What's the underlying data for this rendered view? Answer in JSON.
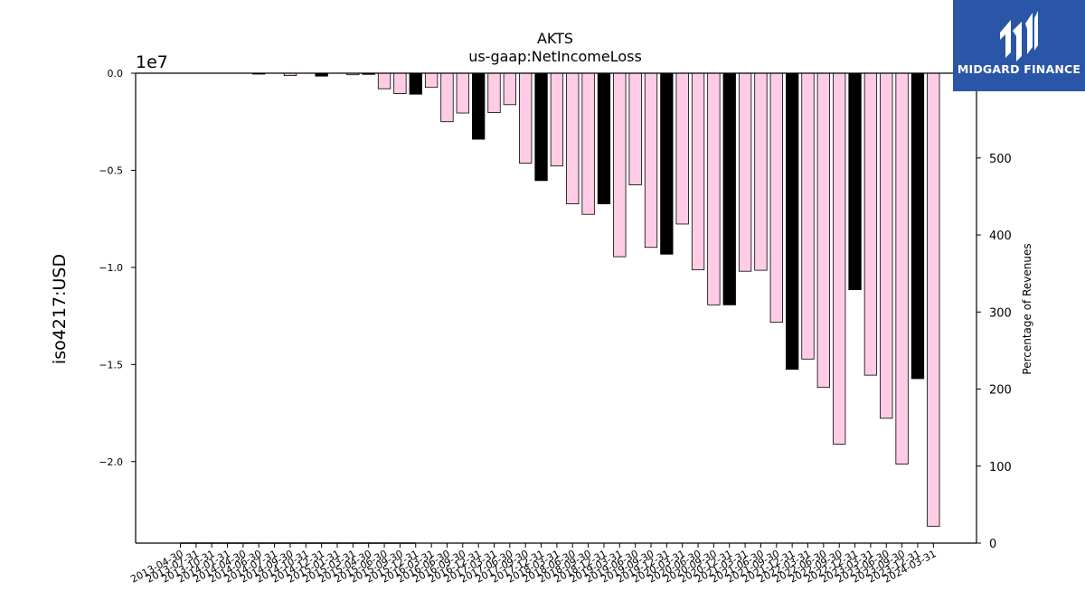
{
  "chart_data": {
    "type": "bar",
    "title": "AKTS",
    "subtitle": "us-gaap:NetIncomeLoss",
    "ylabel": "iso4217:USD",
    "y_offset_label": "1e7",
    "y2label": "Percentage of Revenues",
    "ylim": [
      -2.42,
      0.0
    ],
    "y_ticks": [
      0.0,
      -0.5,
      -1.0,
      -1.5,
      -2.0
    ],
    "y_tick_labels": [
      "0.0",
      "−0.5",
      "−1.0",
      "−1.5",
      "−2.0"
    ],
    "y2lim": [
      0,
      610
    ],
    "y2_ticks": [
      0,
      100,
      200,
      300,
      400,
      500
    ],
    "categories": [
      "2013-04-30",
      "2013-07-31",
      "2013-10-31",
      "2014-01-31",
      "2014-04-30",
      "2014-06-30",
      "2014-07-31",
      "2014-09-30",
      "2014-10-31",
      "2014-12-31",
      "2015-01-31",
      "2015-03-31",
      "2015-04-30",
      "2015-06-30",
      "2015-09-30",
      "2015-12-31",
      "2016-03-31",
      "2016-06-30",
      "2016-09-30",
      "2016-12-31",
      "2017-03-31",
      "2017-06-30",
      "2017-09-30",
      "2017-12-31",
      "2018-03-31",
      "2018-06-30",
      "2018-09-30",
      "2018-12-31",
      "2019-03-31",
      "2019-06-30",
      "2019-09-30",
      "2019-12-31",
      "2020-03-31",
      "2020-06-30",
      "2020-09-30",
      "2020-12-31",
      "2021-03-31",
      "2021-06-30",
      "2021-09-30",
      "2021-12-31",
      "2022-03-31",
      "2022-06-30",
      "2022-09-30",
      "2022-12-31",
      "2023-03-31",
      "2023-06-30",
      "2023-09-30",
      "2023-12-31",
      "2024-03-31"
    ],
    "series": [
      {
        "unit_scale": "1e7",
        "values": [
          0,
          0,
          0,
          0,
          0,
          -0.004,
          0,
          -0.012,
          0,
          -0.015,
          0,
          -0.008,
          -0.006,
          -0.08,
          -0.105,
          -0.108,
          -0.073,
          -0.25,
          -0.205,
          -0.34,
          -0.203,
          -0.162,
          -0.463,
          -0.553,
          -0.478,
          -0.673,
          -0.727,
          -0.673,
          -0.945,
          -0.575,
          -0.897,
          -0.932,
          -0.777,
          -1.012,
          -1.193,
          -1.193,
          -1.02,
          -1.015,
          -1.283,
          -1.525,
          -1.472,
          -1.618,
          -1.91,
          -1.115,
          -1.555,
          -1.777,
          -2.013,
          -1.573,
          -2.333
        ],
        "colors": [
          "#ffcce6",
          "#ffcce6",
          "#ffcce6",
          "#ffcce6",
          "#ffcce6",
          "#000000",
          "#ffcce6",
          "#ffcce6",
          "#ffcce6",
          "#000000",
          "#ffcce6",
          "#ffcce6",
          "#000000",
          "#ffcce6",
          "#ffcce6",
          "#000000",
          "#ffcce6",
          "#ffcce6",
          "#ffcce6",
          "#000000",
          "#ffcce6",
          "#ffcce6",
          "#ffcce6",
          "#000000",
          "#ffcce6",
          "#ffcce6",
          "#ffcce6",
          "#000000",
          "#ffcce6",
          "#ffcce6",
          "#ffcce6",
          "#000000",
          "#ffcce6",
          "#ffcce6",
          "#ffcce6",
          "#000000",
          "#ffcce6",
          "#ffcce6",
          "#ffcce6",
          "#000000",
          "#ffcce6",
          "#ffcce6",
          "#ffcce6",
          "#000000",
          "#ffcce6",
          "#ffcce6",
          "#ffcce6",
          "#000000",
          "#ffcce6"
        ]
      }
    ],
    "secondary_series": {
      "name": "Percentage of Revenues",
      "color": "#000000",
      "values": [
        0,
        0,
        0,
        0,
        0,
        0,
        0,
        0,
        0,
        0,
        0,
        0,
        0,
        0,
        0,
        0,
        null,
        null,
        0,
        null,
        null,
        null,
        null,
        null,
        null,
        null,
        null,
        null,
        null,
        null,
        null,
        null,
        null,
        null,
        null,
        null,
        null,
        null,
        null,
        null,
        null,
        null,
        null,
        null,
        null,
        null,
        null,
        null,
        null
      ]
    },
    "grid": false,
    "legend": "none",
    "colors": {
      "pink": "#ffcce6",
      "black": "#000000",
      "edge": "#000000"
    }
  },
  "logo": {
    "name": "MIDGARD FINANCE",
    "bg_color": "#2a56a8",
    "icon": "midgard-logo-icon"
  }
}
